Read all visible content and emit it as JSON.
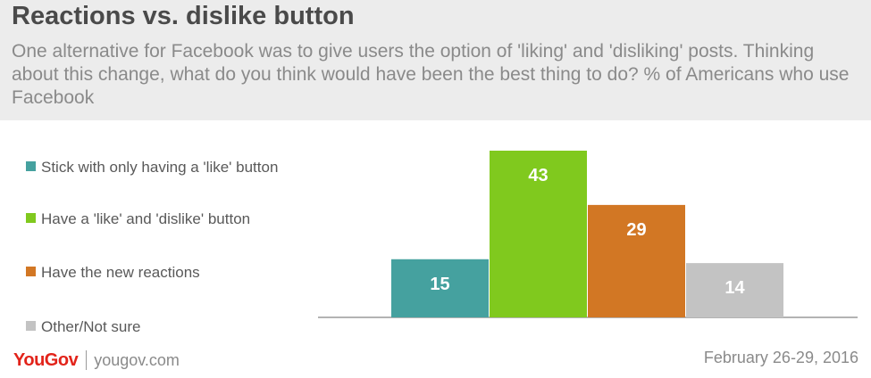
{
  "header": {
    "title": "Reactions vs. dislike button",
    "subtitle": "One alternative for Facebook was to give users the option of 'liking' and 'disliking' posts. Thinking about this change, what do you think would have been the best thing to do? % of Americans who use Facebook"
  },
  "chart_data": {
    "type": "bar",
    "title": "Reactions vs. dislike button",
    "subtitle": "One alternative for Facebook was to give users the option of 'liking' and 'disliking' posts. Thinking about this change, what do you think would have been the best thing to do? % of Americans who use Facebook",
    "categories": [
      "Stick with only having a 'like' button",
      "Have a 'like' and 'dislike' button",
      "Have the new reactions",
      "Other/Not sure"
    ],
    "values": [
      15,
      43,
      29,
      14
    ],
    "colors": [
      "#45a19f",
      "#80c91e",
      "#d27724",
      "#c3c3c3"
    ],
    "data_labels": [
      "15",
      "43",
      "29",
      "14"
    ],
    "ylim": [
      0,
      43
    ],
    "grid": false,
    "legend_position": "left"
  },
  "legend": {
    "items": [
      {
        "label": "Stick with only having a 'like' button",
        "color": "#45a19f"
      },
      {
        "label": "Have a 'like' and 'dislike' button",
        "color": "#80c91e"
      },
      {
        "label": "Have the new reactions",
        "color": "#d27724"
      },
      {
        "label": "Other/Not sure",
        "color": "#c3c3c3"
      }
    ]
  },
  "footer": {
    "brand": "YouGov",
    "url": "yougov.com",
    "date": "February 26-29, 2016"
  },
  "colors": {
    "header_bg": "#ececec",
    "title": "#4a4a4a",
    "subtitle": "#8a8a8a",
    "brand": "#e2231a",
    "baseline": "#9a9a9a"
  }
}
